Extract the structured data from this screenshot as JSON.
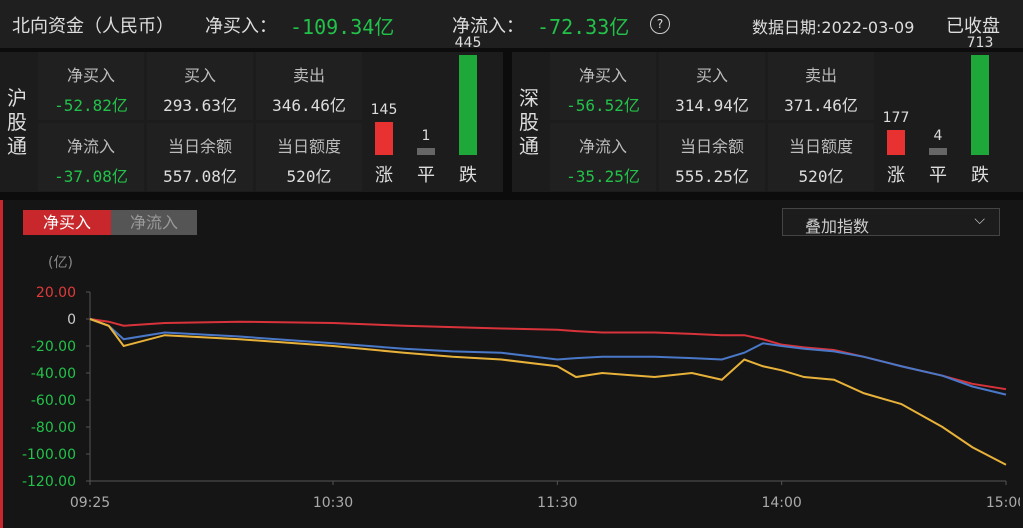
{
  "header": {
    "title": "北向资金（人民币）",
    "items": [
      {
        "label": "净买入：",
        "value": "-109.34亿"
      },
      {
        "label": "净流入：",
        "value": "-72.33亿"
      }
    ],
    "date": "数据日期:2022-03-09",
    "status": "已收盘"
  },
  "panels": [
    {
      "name": "沪股通",
      "cells": [
        {
          "label": "净买入",
          "value": "-52.82亿"
        },
        {
          "label": "买入",
          "value": "293.63亿"
        },
        {
          "label": "卖出",
          "value": "346.46亿"
        },
        {
          "label": "净流入",
          "value": "-37.08亿"
        },
        {
          "label": "当日余额",
          "value": "557.08亿"
        },
        {
          "label": "当日额度",
          "value": "520亿"
        }
      ],
      "counts": [
        {
          "label": "涨",
          "value": 145,
          "color": "#e83232"
        },
        {
          "label": "平",
          "value": 1,
          "color": "#666666"
        },
        {
          "label": "跌",
          "value": 445,
          "color": "#1fa83a"
        }
      ]
    },
    {
      "name": "深股通",
      "cells": [
        {
          "label": "净买入",
          "value": "-56.52亿"
        },
        {
          "label": "买入",
          "value": "314.94亿"
        },
        {
          "label": "卖出",
          "value": "371.46亿"
        },
        {
          "label": "净流入",
          "value": "-35.25亿"
        },
        {
          "label": "当日余额",
          "value": "555.25亿"
        },
        {
          "label": "当日额度",
          "value": "520亿"
        }
      ],
      "counts": [
        {
          "label": "涨",
          "value": 177,
          "color": "#e83232"
        },
        {
          "label": "平",
          "value": 4,
          "color": "#666666"
        },
        {
          "label": "跌",
          "value": 713,
          "color": "#1fa83a"
        }
      ]
    }
  ],
  "tabs": [
    "净买入",
    "净流入"
  ],
  "dropdown": "叠加指数",
  "chart_data": {
    "type": "line",
    "y_label": "(亿)",
    "x": [
      0,
      5,
      9,
      20,
      40,
      65,
      84,
      97,
      110,
      125,
      130,
      137,
      151,
      161,
      169,
      175,
      180,
      185,
      191,
      199,
      207,
      217,
      228,
      236,
      245
    ],
    "xlim": [
      0,
      245
    ],
    "xticks": [
      {
        "value": 0,
        "label": "09:25"
      },
      {
        "value": 65,
        "label": "10:30"
      },
      {
        "value": 125,
        "label": "11:30"
      },
      {
        "value": 185,
        "label": "14:00"
      },
      {
        "value": 245,
        "label": "15:00"
      }
    ],
    "ylim": [
      -120,
      20
    ],
    "yticks": [
      {
        "value": 20,
        "label": "20.00"
      },
      0,
      {
        "value": -20,
        "label": "-20.00"
      },
      {
        "value": -40,
        "label": "-40.00"
      },
      {
        "value": -60,
        "label": "-60.00"
      },
      {
        "value": -80,
        "label": "-80.00"
      },
      {
        "value": -100,
        "label": "-100.00"
      },
      {
        "value": -120,
        "label": "-120.00"
      }
    ],
    "series": [
      {
        "color": "#d8333a",
        "values": [
          0,
          -2,
          -5,
          -3,
          -2,
          -3,
          -5,
          -6,
          -7,
          -8,
          -9,
          -10,
          -10,
          -11,
          -12,
          -12,
          -15,
          -19,
          -21,
          -23,
          -28,
          -35,
          -42,
          -48,
          -52
        ]
      },
      {
        "color": "#4a78c8",
        "values": [
          0,
          -5,
          -15,
          -10,
          -13,
          -18,
          -22,
          -24,
          -25,
          -30,
          -29,
          -28,
          -28,
          -29,
          -30,
          -25,
          -18,
          -20,
          -22,
          -24,
          -28,
          -35,
          -42,
          -50,
          -56
        ]
      },
      {
        "color": "#e8b23a",
        "values": [
          0,
          -5,
          -20,
          -12,
          -15,
          -20,
          -25,
          -28,
          -30,
          -35,
          -43,
          -40,
          -43,
          -40,
          -45,
          -30,
          -35,
          -38,
          -43,
          -45,
          -55,
          -63,
          -80,
          -95,
          -108
        ]
      }
    ]
  }
}
